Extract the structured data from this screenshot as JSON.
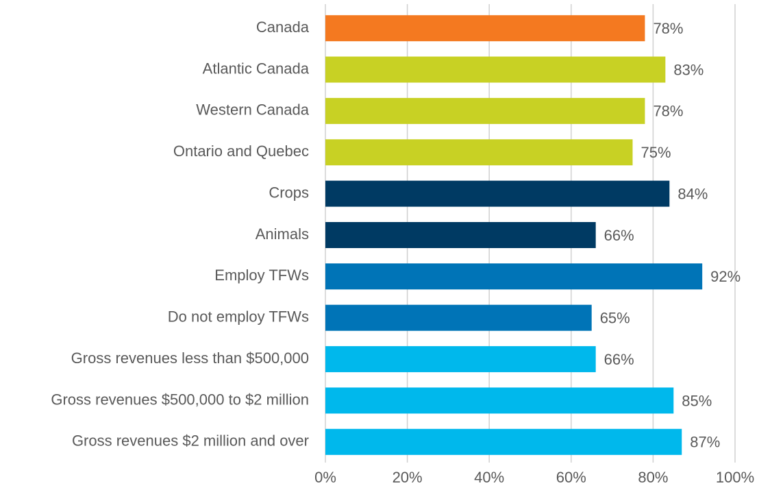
{
  "chart_data": {
    "type": "hbar",
    "categories": [
      "Canada",
      "Atlantic Canada",
      "Western Canada",
      "Ontario and Quebec",
      "Crops",
      "Animals",
      "Employ TFWs",
      "Do not employ TFWs",
      "Gross revenues less than $500,000",
      "Gross revenues $500,000 to $2 million",
      "Gross revenues $2 million and over"
    ],
    "values": [
      78,
      83,
      78,
      75,
      84,
      66,
      92,
      65,
      66,
      85,
      87
    ],
    "value_labels": [
      "78%",
      "83%",
      "78%",
      "75%",
      "84%",
      "66%",
      "92%",
      "65%",
      "66%",
      "85%",
      "87%"
    ],
    "colors": [
      "#f47920",
      "#c8d124",
      "#c8d124",
      "#c8d124",
      "#003a63",
      "#003a63",
      "#0074b7",
      "#0074b7",
      "#00b8ec",
      "#00b8ec",
      "#00b8ec"
    ],
    "xlim": [
      0,
      100
    ],
    "xticks": [
      {
        "value": 0,
        "label": "0%"
      },
      {
        "value": 20,
        "label": "20%"
      },
      {
        "value": 40,
        "label": "40%"
      },
      {
        "value": 60,
        "label": "60%"
      },
      {
        "value": 80,
        "label": "80%"
      },
      {
        "value": 100,
        "label": "100%"
      }
    ],
    "grid": true
  }
}
